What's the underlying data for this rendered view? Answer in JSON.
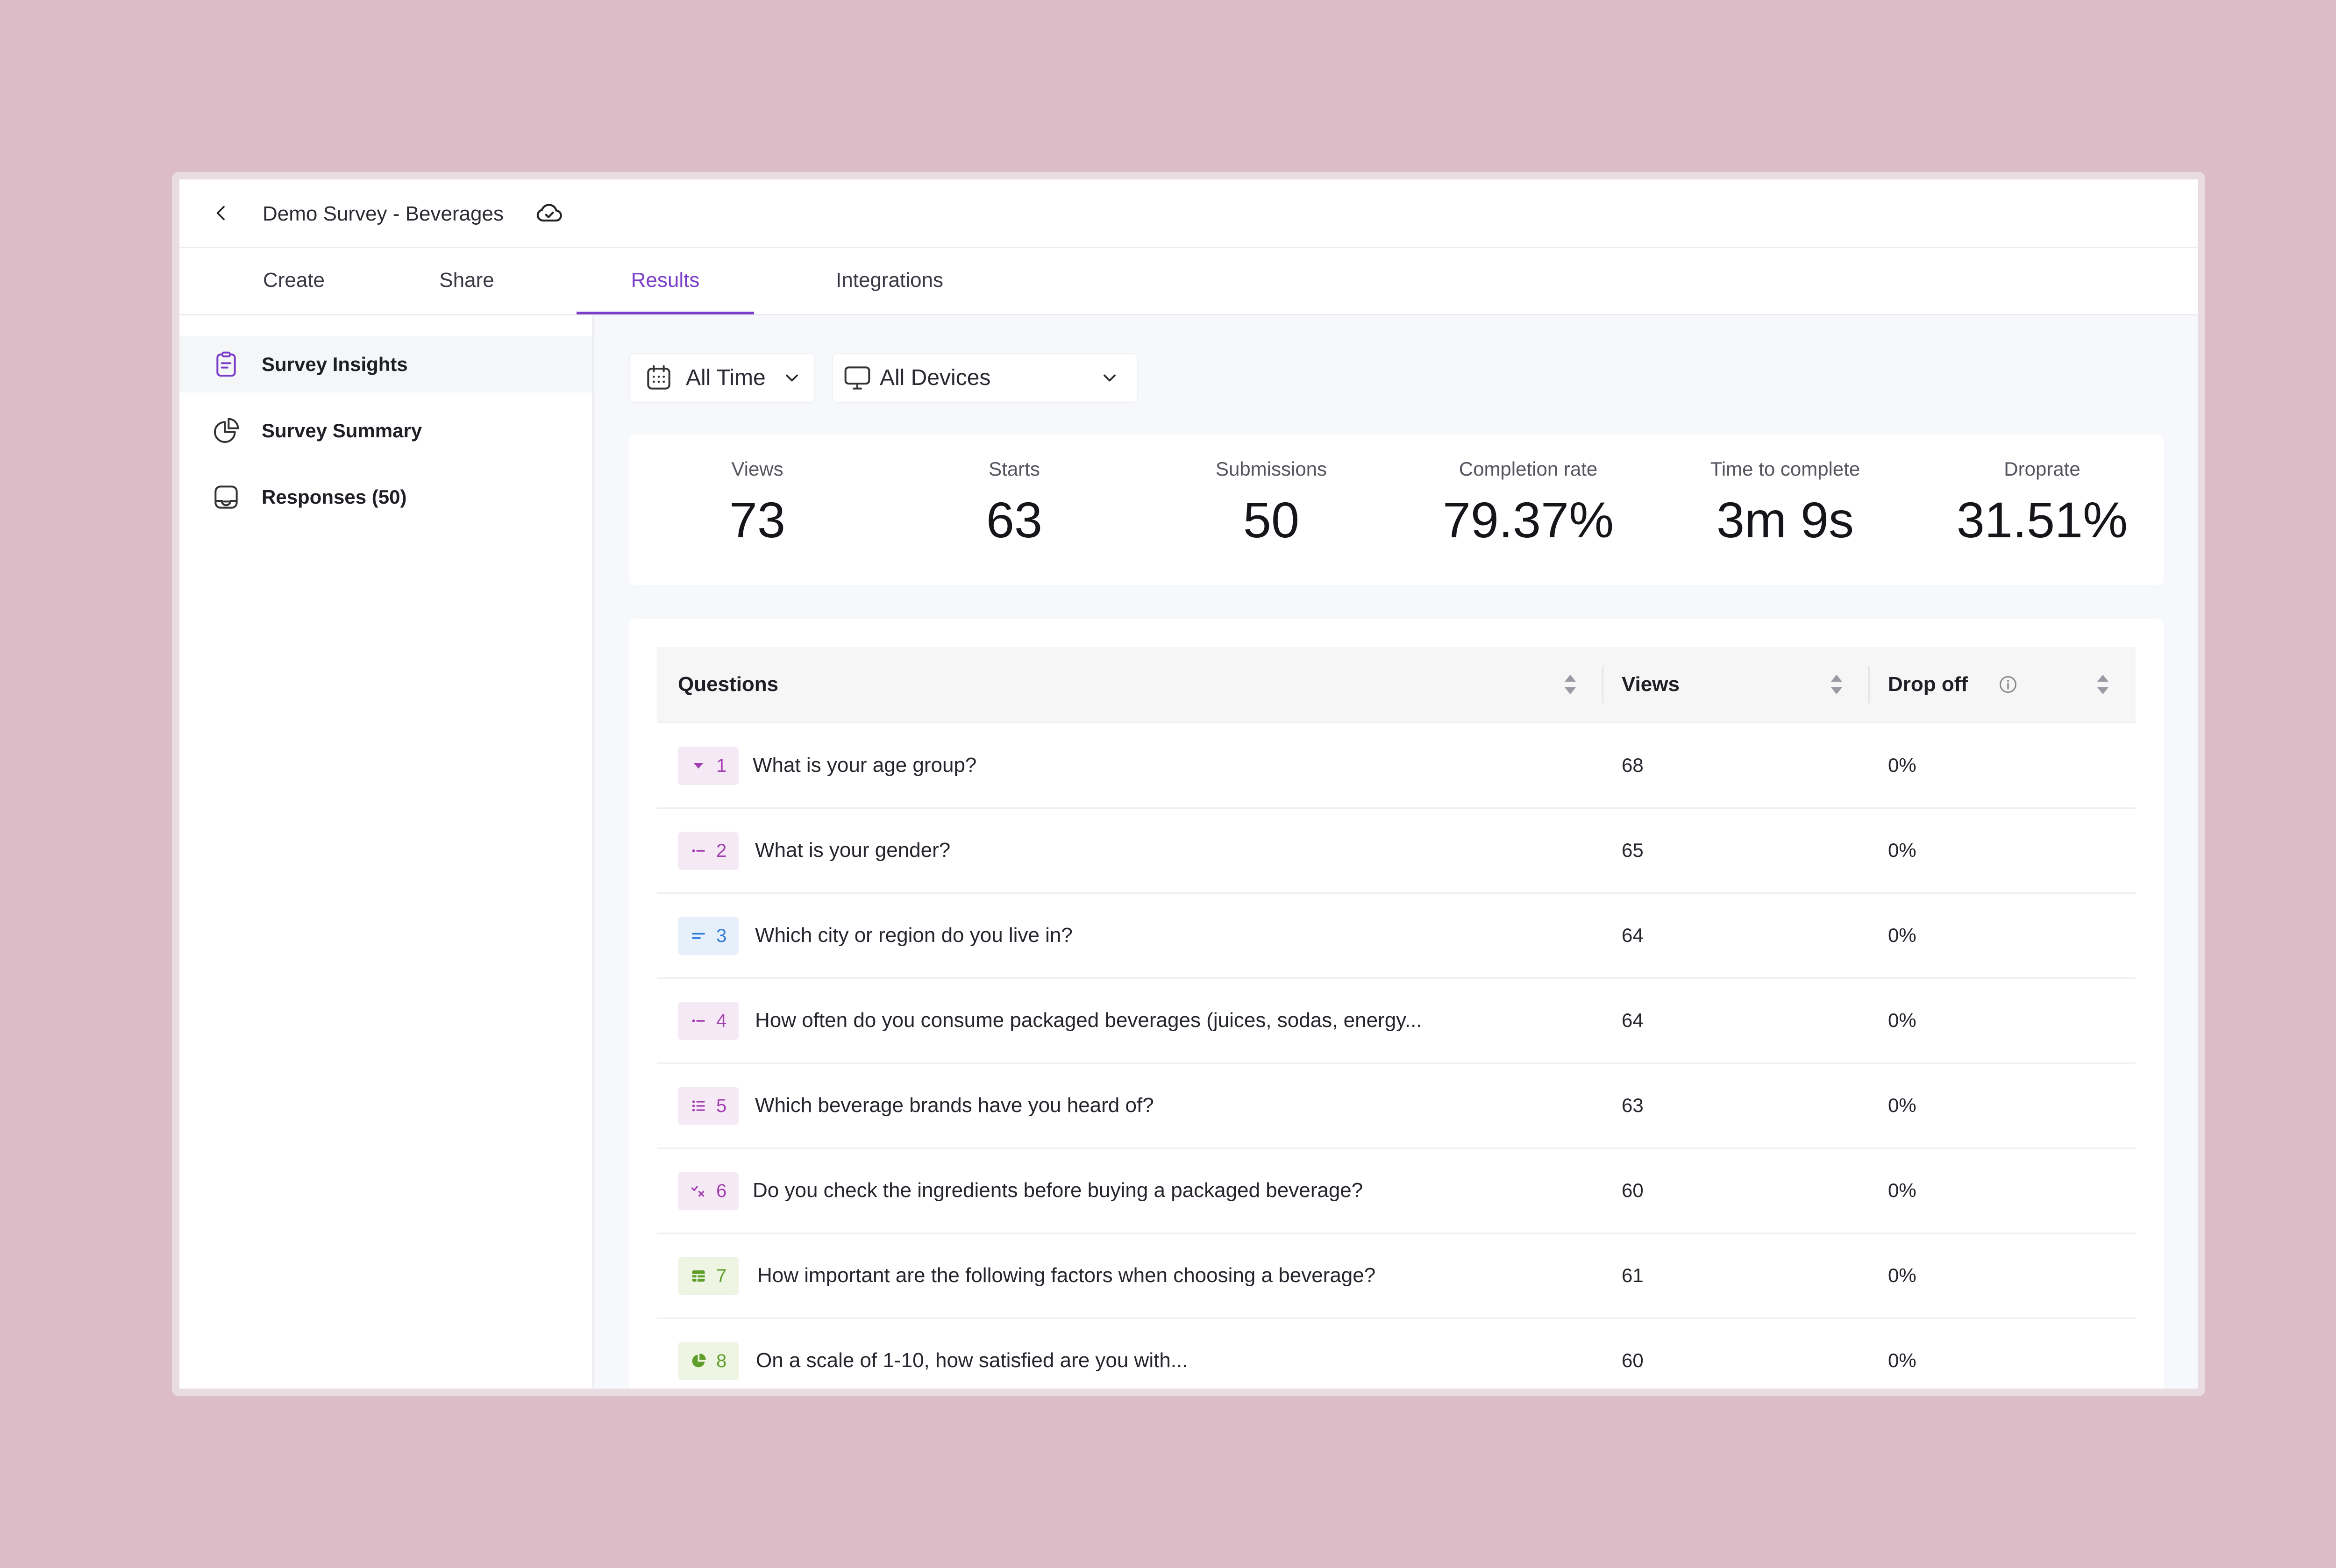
{
  "header": {
    "title": "Demo Survey - Beverages"
  },
  "tabs": [
    {
      "label": "Create"
    },
    {
      "label": "Share"
    },
    {
      "label": "Results"
    },
    {
      "label": "Integrations"
    }
  ],
  "active_tab": "Results",
  "sidebar": {
    "items": [
      {
        "label": "Survey Insights",
        "icon": "clipboard-icon",
        "active": true
      },
      {
        "label": "Survey Summary",
        "icon": "pie-chart-icon",
        "active": false
      },
      {
        "label": "Responses (50)",
        "icon": "responses-icon",
        "active": false
      }
    ]
  },
  "filters": {
    "time": {
      "label": "All Time",
      "icon": "calendar-icon"
    },
    "device": {
      "label": "All Devices",
      "icon": "monitor-icon"
    }
  },
  "stats": [
    {
      "label": "Views",
      "value": "73"
    },
    {
      "label": "Starts",
      "value": "63"
    },
    {
      "label": "Submissions",
      "value": "50"
    },
    {
      "label": "Completion rate",
      "value": "79.37%"
    },
    {
      "label": "Time to complete",
      "value": "3m 9s"
    },
    {
      "label": "Droprate",
      "value": "31.51%"
    }
  ],
  "table": {
    "columns": {
      "questions": "Questions",
      "views": "Views",
      "dropoff": "Drop off"
    },
    "rows": [
      {
        "num": "1",
        "type": "dropdown",
        "question": "What is your age group?",
        "views": "68",
        "dropoff": "0%"
      },
      {
        "num": "2",
        "type": "single-choice",
        "question": "What is your gender?",
        "views": "65",
        "dropoff": "0%"
      },
      {
        "num": "3",
        "type": "short-text",
        "question": "Which city or region do you live in?",
        "views": "64",
        "dropoff": "0%"
      },
      {
        "num": "4",
        "type": "single-choice",
        "question": "How often do you consume packaged beverages (juices, sodas, energy...",
        "views": "64",
        "dropoff": "0%"
      },
      {
        "num": "5",
        "type": "multi-choice",
        "question": "Which beverage brands have you heard of?",
        "views": "63",
        "dropoff": "0%"
      },
      {
        "num": "6",
        "type": "yes-no",
        "question": "Do you check the ingredients before buying a packaged beverage?",
        "views": "60",
        "dropoff": "0%"
      },
      {
        "num": "7",
        "type": "matrix",
        "question": "How important are the following factors when choosing a beverage?",
        "views": "61",
        "dropoff": "0%"
      },
      {
        "num": "8",
        "type": "rating-scale",
        "question": "On a scale of 1-10, how satisfied are you with...",
        "views": "60",
        "dropoff": "0%"
      }
    ]
  },
  "colors": {
    "accent": "#7a3ec9",
    "badge_purple_bg": "#f6e9f6",
    "badge_purple_fg": "#a23fb0",
    "badge_blue_bg": "#e6f0fb",
    "badge_blue_fg": "#2f7bd6",
    "badge_green_bg": "#eef6e3",
    "badge_green_fg": "#5f9e2a"
  }
}
